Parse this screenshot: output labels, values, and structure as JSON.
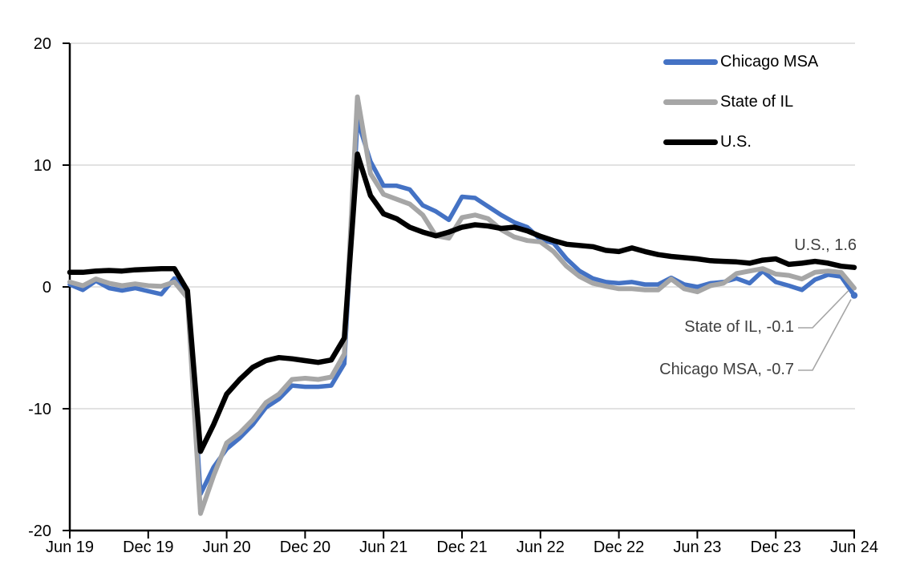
{
  "chart_data": {
    "type": "line",
    "title": "",
    "xlabel": "",
    "ylabel": "",
    "x_frequency": "monthly",
    "x_start": "Jun 2019",
    "x_end": "Jun 2024",
    "n_points": 61,
    "x_tick_labels": [
      "Jun 19",
      "Dec 19",
      "Jun 20",
      "Dec 20",
      "Jun 21",
      "Dec 21",
      "Jun 22",
      "Dec 22",
      "Jun 23",
      "Dec 23",
      "Jun 24"
    ],
    "y_ticks": [
      20,
      10,
      0,
      -10,
      -20
    ],
    "ylim": [
      -20,
      20
    ],
    "grid": "horizontal",
    "legend_position": "top-right-inside",
    "colors": {
      "grid": "#D9D9D9",
      "axis": "#000000",
      "annotation_text": "#404040",
      "leader_line": "#A6A6A6",
      "background": "#FFFFFF"
    },
    "series": [
      {
        "name": "Chicago MSA",
        "color": "#4472C4",
        "end_label": "Chicago MSA, -0.7",
        "end_value": -0.7,
        "values": [
          0.2,
          -0.25,
          0.5,
          -0.1,
          -0.3,
          -0.1,
          -0.35,
          -0.6,
          0.7,
          -0.6,
          -17.0,
          -14.8,
          -13.3,
          -12.4,
          -11.3,
          -9.9,
          -9.2,
          -8.1,
          -8.2,
          -8.2,
          -8.1,
          -6.3,
          13.7,
          10.3,
          8.3,
          8.3,
          8.0,
          6.7,
          6.2,
          5.5,
          7.4,
          7.3,
          6.6,
          5.9,
          5.3,
          4.9,
          3.9,
          3.6,
          2.3,
          1.3,
          0.7,
          0.4,
          0.3,
          0.4,
          0.2,
          0.2,
          0.75,
          0.2,
          0.0,
          0.3,
          0.4,
          0.7,
          0.3,
          1.3,
          0.4,
          0.1,
          -0.25,
          0.6,
          1.0,
          0.85,
          -0.7
        ]
      },
      {
        "name": "State of IL",
        "color": "#A6A6A6",
        "end_label": "State of IL, -0.1",
        "end_value": -0.1,
        "values": [
          0.4,
          0.1,
          0.65,
          0.3,
          0.1,
          0.25,
          0.1,
          0.05,
          0.4,
          -0.9,
          -18.6,
          -15.5,
          -12.8,
          -12.0,
          -10.9,
          -9.5,
          -8.8,
          -7.6,
          -7.5,
          -7.6,
          -7.4,
          -5.5,
          15.6,
          9.3,
          7.6,
          7.2,
          6.8,
          5.9,
          4.2,
          4.0,
          5.7,
          5.9,
          5.6,
          4.7,
          4.1,
          3.8,
          3.7,
          2.9,
          1.7,
          0.85,
          0.3,
          0.05,
          -0.15,
          -0.15,
          -0.25,
          -0.25,
          0.65,
          -0.15,
          -0.4,
          0.1,
          0.3,
          1.1,
          1.3,
          1.5,
          1.05,
          0.95,
          0.65,
          1.2,
          1.3,
          1.2,
          -0.1
        ]
      },
      {
        "name": "U.S.",
        "color": "#000000",
        "end_label": "U.S., 1.6",
        "end_value": 1.6,
        "values": [
          1.2,
          1.2,
          1.3,
          1.35,
          1.3,
          1.4,
          1.45,
          1.5,
          1.5,
          -0.3,
          -13.5,
          -11.3,
          -8.8,
          -7.6,
          -6.6,
          -6.05,
          -5.8,
          -5.9,
          -6.05,
          -6.2,
          -6.0,
          -4.2,
          10.9,
          7.5,
          6.0,
          5.6,
          4.9,
          4.5,
          4.2,
          4.5,
          4.9,
          5.1,
          5.0,
          4.8,
          4.9,
          4.6,
          4.15,
          3.8,
          3.5,
          3.4,
          3.3,
          3.0,
          2.9,
          3.2,
          2.9,
          2.65,
          2.5,
          2.4,
          2.3,
          2.15,
          2.1,
          2.05,
          1.95,
          2.2,
          2.3,
          1.85,
          1.95,
          2.1,
          1.95,
          1.7,
          1.6
        ]
      }
    ]
  }
}
